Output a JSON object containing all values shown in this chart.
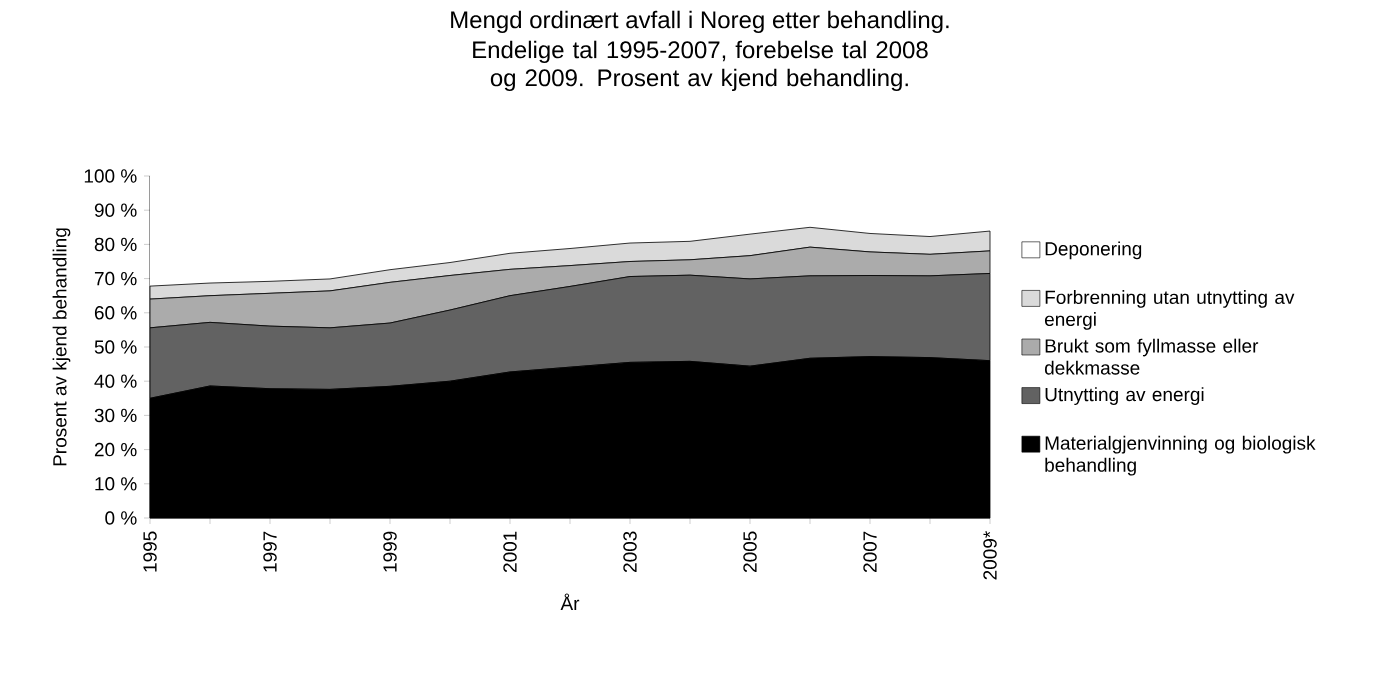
{
  "chart_data": {
    "type": "area",
    "stacked": true,
    "title": "Mengd ordinært avfall i Noreg etter behandling.",
    "subtitle": "Endelige tal 1995-2007, forebelse tal 2008 og 2009. Prosent av kjend behandling.",
    "xlabel": "År",
    "ylabel": "Prosent av kjend behandling",
    "categories": [
      "1995",
      null,
      "1997",
      null,
      "1999",
      null,
      "2001",
      null,
      "2003",
      null,
      "2005",
      null,
      "2007",
      null,
      "2009*"
    ],
    "series": [
      {
        "name": "Materialgjenvinning og biologisk behandling",
        "color": "#000000",
        "values": [
          35.0,
          38.6,
          37.8,
          37.6,
          38.5,
          40.0,
          42.7,
          44.1,
          45.5,
          45.8,
          44.4,
          46.7,
          47.2,
          46.9,
          46.0
        ]
      },
      {
        "name": "Utnytting av energi",
        "color": "#626262",
        "values": [
          20.6,
          18.6,
          18.3,
          18.0,
          18.5,
          20.8,
          22.3,
          23.6,
          25.1,
          25.2,
          25.5,
          24.1,
          23.7,
          23.9,
          25.5
        ]
      },
      {
        "name": "Brukt som fyllmasse eller dekkmasse",
        "color": "#ababab",
        "values": [
          8.4,
          7.8,
          9.6,
          10.8,
          11.9,
          10.1,
          7.7,
          6.1,
          4.4,
          4.5,
          6.8,
          8.4,
          6.9,
          6.3,
          6.6
        ]
      },
      {
        "name": "Forbrenning utan utnytting av energi",
        "color": "#dadada",
        "values": [
          3.8,
          3.7,
          3.5,
          3.5,
          3.7,
          3.8,
          4.7,
          5.0,
          5.4,
          5.4,
          6.3,
          5.8,
          5.4,
          5.2,
          5.8
        ]
      },
      {
        "name": "Deponering",
        "color": "#ffffff",
        "values": [
          32.2,
          31.3,
          30.8,
          30.1,
          27.4,
          25.3,
          22.6,
          21.2,
          19.6,
          19.1,
          17.0,
          15.0,
          16.8,
          17.7,
          16.1
        ]
      }
    ],
    "ylim": [
      0,
      100
    ],
    "yticks": [
      {
        "value": 0,
        "label": "0 %"
      },
      {
        "value": 10,
        "label": "10 %"
      },
      {
        "value": 20,
        "label": "20 %"
      },
      {
        "value": 30,
        "label": "30 %"
      },
      {
        "value": 40,
        "label": "40 %"
      },
      {
        "value": 50,
        "label": "50 %"
      },
      {
        "value": 60,
        "label": "60 %"
      },
      {
        "value": 70,
        "label": "70 %"
      },
      {
        "value": 80,
        "label": "80 %"
      },
      {
        "value": 90,
        "label": "90 %"
      },
      {
        "value": 100,
        "label": "100 %"
      }
    ],
    "legend": "right",
    "grid": false
  }
}
